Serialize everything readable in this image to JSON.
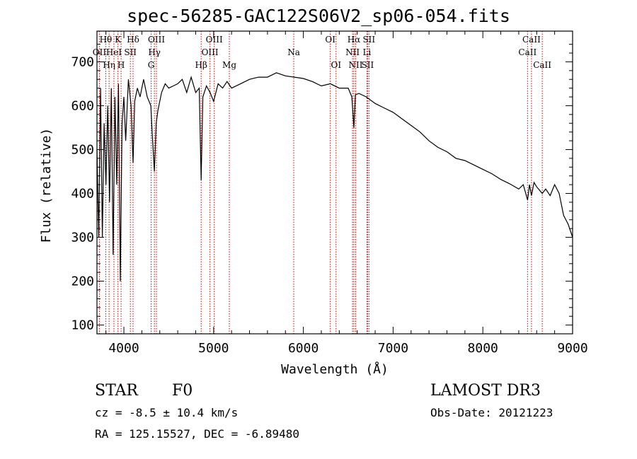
{
  "chart_data": {
    "type": "line",
    "title": "spec-56285-GAC122S06V2_sp06-054.fits",
    "xlabel": "Wavelength (Å)",
    "ylabel": "Flux (relative)",
    "xlim": [
      3700,
      9000
    ],
    "ylim": [
      80,
      770
    ],
    "x_ticks": [
      4000,
      5000,
      6000,
      7000,
      8000,
      9000
    ],
    "y_ticks": [
      100,
      200,
      300,
      400,
      500,
      600,
      700
    ],
    "series": [
      {
        "name": "flux",
        "x": [
          3700,
          3720,
          3740,
          3760,
          3780,
          3800,
          3820,
          3840,
          3860,
          3880,
          3900,
          3920,
          3940,
          3960,
          3970,
          3980,
          4000,
          4020,
          4050,
          4080,
          4102,
          4120,
          4150,
          4180,
          4220,
          4260,
          4300,
          4320,
          4340,
          4360,
          4380,
          4420,
          4460,
          4500,
          4550,
          4600,
          4650,
          4700,
          4750,
          4800,
          4840,
          4861,
          4880,
          4920,
          4960,
          5000,
          5050,
          5100,
          5150,
          5200,
          5300,
          5400,
          5500,
          5600,
          5700,
          5800,
          5900,
          6000,
          6100,
          6200,
          6300,
          6400,
          6500,
          6540,
          6563,
          6580,
          6620,
          6700,
          6800,
          6900,
          7000,
          7100,
          7200,
          7300,
          7400,
          7500,
          7600,
          7700,
          7800,
          7900,
          8000,
          8100,
          8200,
          8300,
          8400,
          8450,
          8498,
          8520,
          8542,
          8570,
          8600,
          8662,
          8700,
          8750,
          8800,
          8850,
          8900,
          8950,
          9000
        ],
        "values": [
          500,
          300,
          640,
          300,
          560,
          420,
          600,
          380,
          640,
          260,
          620,
          420,
          650,
          200,
          380,
          560,
          620,
          520,
          660,
          600,
          470,
          610,
          640,
          620,
          660,
          620,
          600,
          520,
          450,
          560,
          590,
          630,
          650,
          640,
          645,
          650,
          660,
          630,
          665,
          630,
          640,
          430,
          620,
          645,
          630,
          610,
          650,
          640,
          655,
          640,
          650,
          660,
          665,
          665,
          675,
          668,
          665,
          662,
          655,
          645,
          650,
          640,
          640,
          620,
          550,
          625,
          628,
          620,
          605,
          595,
          585,
          570,
          555,
          540,
          520,
          505,
          495,
          480,
          475,
          465,
          455,
          445,
          432,
          422,
          410,
          420,
          385,
          420,
          395,
          425,
          415,
          400,
          410,
          395,
          420,
          400,
          350,
          330,
          300
        ]
      }
    ],
    "line_markers": [
      {
        "label": "Hθ",
        "x": 3798,
        "row": 0
      },
      {
        "label": "Hη",
        "x": 3835,
        "row": 2
      },
      {
        "label": "OII",
        "x": 3727,
        "row": 1
      },
      {
        "label": "HeI",
        "x": 3889,
        "row": 1
      },
      {
        "label": "K",
        "x": 3934,
        "row": 0
      },
      {
        "label": "H",
        "x": 3969,
        "row": 2
      },
      {
        "label": "SII",
        "x": 4072,
        "row": 1
      },
      {
        "label": "Hδ",
        "x": 4102,
        "row": 0
      },
      {
        "label": "OIII",
        "x": 4363,
        "row": 0
      },
      {
        "label": "Hγ",
        "x": 4340,
        "row": 1
      },
      {
        "label": "G",
        "x": 4304,
        "row": 2
      },
      {
        "label": "Hβ",
        "x": 4861,
        "row": 2
      },
      {
        "label": "OIII",
        "x": 4959,
        "row": 1
      },
      {
        "label": "OIII",
        "x": 5007,
        "row": 0
      },
      {
        "label": "Mg",
        "x": 5175,
        "row": 2
      },
      {
        "label": "Na",
        "x": 5893,
        "row": 1
      },
      {
        "label": "OI",
        "x": 6300,
        "row": 0
      },
      {
        "label": "OI",
        "x": 6364,
        "row": 2
      },
      {
        "label": "Hα",
        "x": 6563,
        "row": 0
      },
      {
        "label": "NII",
        "x": 6548,
        "row": 1
      },
      {
        "label": "NII",
        "x": 6583,
        "row": 2
      },
      {
        "label": "SII",
        "x": 6716,
        "row": 2
      },
      {
        "label": "Li",
        "x": 6708,
        "row": 1
      },
      {
        "label": "SII",
        "x": 6731,
        "row": 0
      },
      {
        "label": "CaII",
        "x": 8498,
        "row": 1
      },
      {
        "label": "CaII",
        "x": 8542,
        "row": 0
      },
      {
        "label": "CaII",
        "x": 8662,
        "row": 2
      }
    ],
    "marker_color": "#cc0000"
  },
  "info": {
    "obj_class": "STAR",
    "subclass": "F0",
    "survey": "LAMOST DR3",
    "cz": "cz = -8.5 ± 10.4 km/s",
    "obs_date": "Obs-Date: 20121223",
    "radec": "RA = 125.15527, DEC =  -6.89480"
  }
}
